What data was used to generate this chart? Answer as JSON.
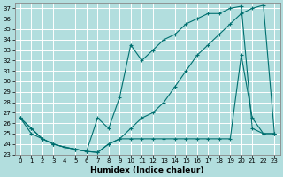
{
  "xlabel": "Humidex (Indice chaleur)",
  "bg_color": "#b2dede",
  "grid_color": "#ffffff",
  "line_color": "#007070",
  "xlim": [
    -0.5,
    23.5
  ],
  "ylim": [
    23,
    37.5
  ],
  "yticks": [
    23,
    24,
    25,
    26,
    27,
    28,
    29,
    30,
    31,
    32,
    33,
    34,
    35,
    36,
    37
  ],
  "xticks": [
    0,
    1,
    2,
    3,
    4,
    5,
    6,
    7,
    8,
    9,
    10,
    11,
    12,
    13,
    14,
    15,
    16,
    17,
    18,
    19,
    20,
    21,
    22,
    23
  ],
  "line1_x": [
    0,
    1,
    2,
    3,
    4,
    5,
    6,
    7,
    8,
    9,
    10,
    11,
    12,
    13,
    14,
    15,
    16,
    17,
    18,
    19,
    20,
    21,
    22,
    23
  ],
  "line1_y": [
    26.5,
    25.5,
    24.5,
    24.0,
    23.7,
    23.5,
    23.3,
    23.2,
    24.0,
    24.5,
    25.5,
    26.5,
    27.0,
    28.0,
    29.5,
    31.0,
    32.5,
    33.5,
    34.5,
    35.5,
    36.5,
    37.0,
    37.3,
    25.0
  ],
  "line2_x": [
    0,
    1,
    2,
    3,
    4,
    5,
    6,
    7,
    8,
    9,
    10,
    11,
    12,
    13,
    14,
    15,
    16,
    17,
    18,
    19,
    20,
    21,
    22,
    23
  ],
  "line2_y": [
    26.5,
    25.5,
    24.5,
    24.0,
    23.7,
    23.5,
    23.3,
    26.5,
    25.5,
    28.5,
    33.5,
    32.0,
    33.0,
    34.0,
    34.5,
    35.5,
    36.0,
    36.5,
    36.5,
    37.0,
    37.2,
    25.5,
    25.0,
    25.0
  ],
  "line3_x": [
    0,
    1,
    2,
    3,
    4,
    5,
    6,
    7,
    8,
    9,
    10,
    11,
    12,
    13,
    14,
    15,
    16,
    17,
    18,
    19,
    20,
    21,
    22,
    23
  ],
  "line3_y": [
    26.5,
    25.0,
    24.5,
    24.0,
    23.7,
    23.5,
    23.3,
    23.2,
    24.0,
    24.5,
    24.5,
    24.5,
    24.5,
    24.5,
    24.5,
    24.5,
    24.5,
    24.5,
    24.5,
    24.5,
    32.5,
    26.5,
    25.0,
    25.0
  ]
}
